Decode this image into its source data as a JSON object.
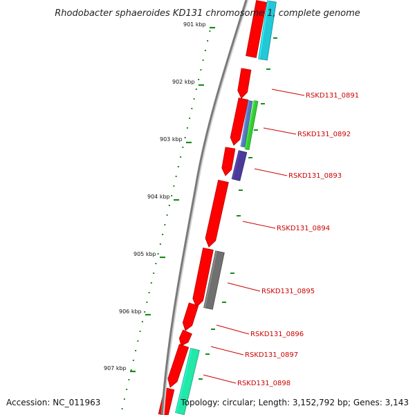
{
  "title": "Rhodobacter sphaeroides KD131 chromosome 1, complete genome",
  "accession": "Accession: NC_011963",
  "topology": "Topology: circular; Length: 3,152,792 bp; Genes: 3,143",
  "kbp_labels": [
    "901 kbp",
    "902 kbp",
    "903 kbp",
    "904 kbp",
    "905 kbp",
    "906 kbp",
    "907 kbp"
  ],
  "gene_labels": [
    "RSKD131_0891",
    "RSKD131_0892",
    "RSKD131_0893",
    "RSKD131_0894",
    "RSKD131_0895",
    "RSKD131_0896",
    "RSKD131_0897",
    "RSKD131_0898"
  ],
  "colors": {
    "cds": "#ff0000",
    "backbone": "#7f7f7f",
    "tick": "#1a8a1a",
    "label": "#cc0000",
    "cyan_feature": "#22c8d8",
    "blue_feature": "#5577bb",
    "green_feature": "#33cc33",
    "purple_feature": "#4a3a99",
    "gray_feature": "#707070",
    "teal_feature": "#22e8a8"
  }
}
